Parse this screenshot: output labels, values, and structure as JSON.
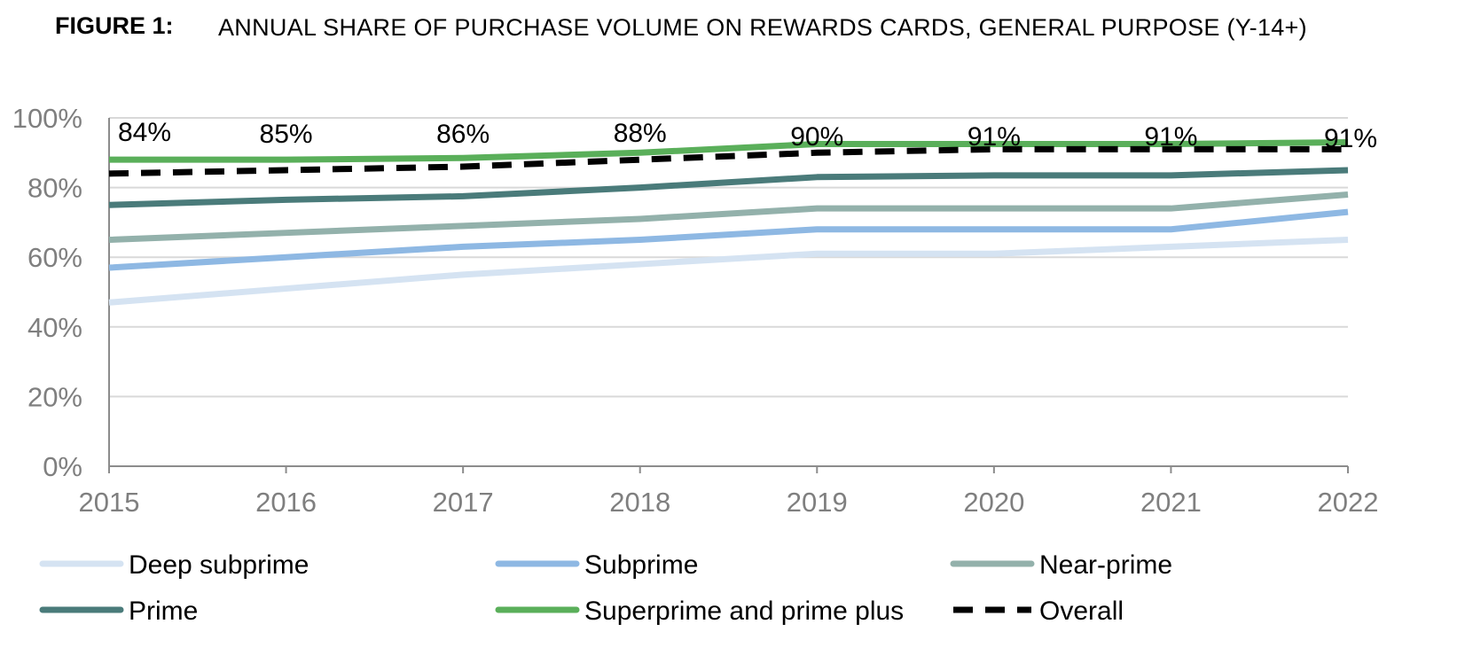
{
  "figure": {
    "label": "FIGURE 1:",
    "title": "ANNUAL SHARE OF PURCHASE VOLUME ON REWARDS CARDS, GENERAL PURPOSE (Y-14+)"
  },
  "chart_data": {
    "type": "line",
    "title": "ANNUAL SHARE OF PURCHASE VOLUME ON REWARDS CARDS, GENERAL PURPOSE (Y-14+)",
    "xlabel": "",
    "ylabel": "",
    "x": [
      "2015",
      "2016",
      "2017",
      "2018",
      "2019",
      "2020",
      "2021",
      "2022"
    ],
    "ylim": [
      0,
      100
    ],
    "yticks": [
      "0%",
      "20%",
      "40%",
      "60%",
      "80%",
      "100%"
    ],
    "y_tick_values": [
      0,
      20,
      40,
      60,
      80,
      100
    ],
    "grid": "horizontal",
    "legend_position": "bottom",
    "series": [
      {
        "name": "Deep subprime",
        "color": "#d5e3f2",
        "style": "solid",
        "values": [
          47,
          51,
          55,
          58,
          61,
          61,
          63,
          65
        ]
      },
      {
        "name": "Subprime",
        "color": "#8eb8e3",
        "style": "solid",
        "values": [
          57,
          60,
          63,
          65,
          68,
          68,
          68,
          73
        ]
      },
      {
        "name": "Near-prime",
        "color": "#93b1ab",
        "style": "solid",
        "values": [
          65,
          67,
          69,
          71,
          74,
          74,
          74,
          78
        ]
      },
      {
        "name": "Prime",
        "color": "#4a7b7a",
        "style": "solid",
        "values": [
          75,
          76.5,
          77.5,
          80,
          83,
          83.5,
          83.5,
          85
        ]
      },
      {
        "name": "Superprime and prime plus",
        "color": "#5aaf5a",
        "style": "solid",
        "values": [
          88,
          88,
          88.5,
          90,
          92.5,
          92.5,
          92.5,
          93
        ]
      },
      {
        "name": "Overall",
        "color": "#000000",
        "style": "dashed",
        "values": [
          84,
          85,
          86,
          88,
          90,
          91,
          91,
          91
        ]
      }
    ],
    "data_labels": [
      "84%",
      "85%",
      "86%",
      "88%",
      "90%",
      "91%",
      "91%",
      "91%"
    ]
  }
}
